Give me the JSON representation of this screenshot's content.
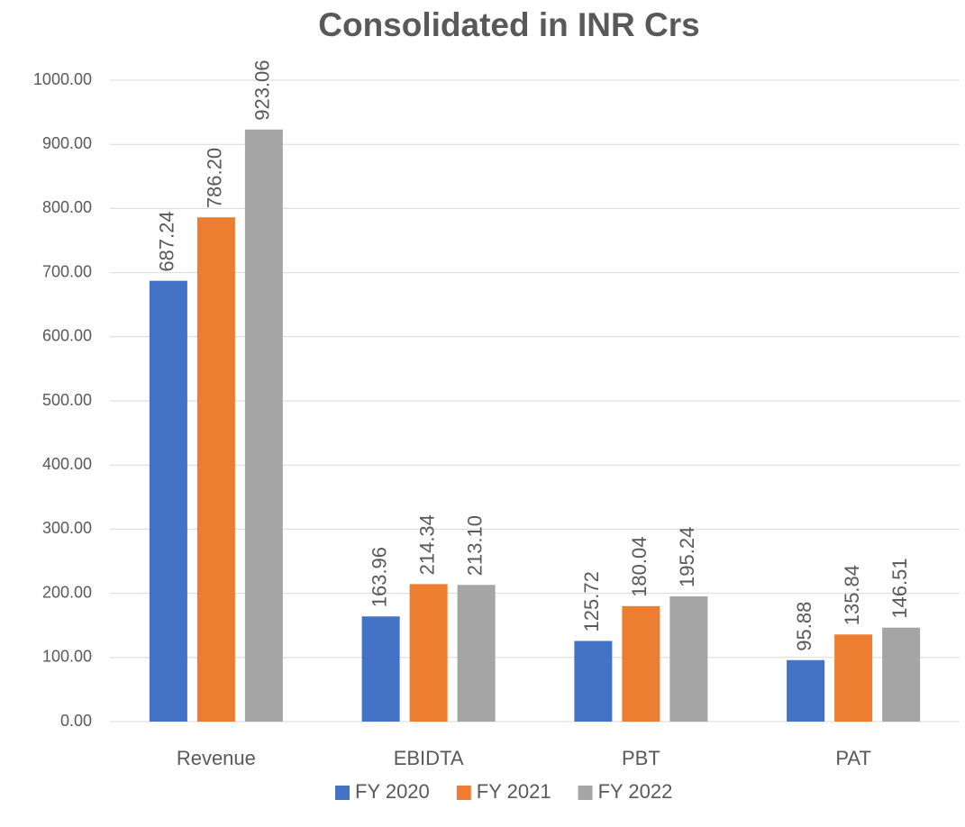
{
  "chart_data": {
    "type": "bar",
    "title": "Consolidated in INR Crs",
    "categories": [
      "Revenue",
      "EBIDTA",
      "PBT",
      "PAT"
    ],
    "series": [
      {
        "name": "FY 2020",
        "color": "#4472c4",
        "values": [
          687.24,
          163.96,
          125.72,
          95.88
        ],
        "value_labels": [
          "687.24",
          "163.96",
          "125.72",
          "95.88"
        ]
      },
      {
        "name": "FY 2021",
        "color": "#ed7d31",
        "values": [
          786.2,
          214.34,
          180.04,
          135.84
        ],
        "value_labels": [
          "786.20",
          "214.34",
          "180.04",
          "135.84"
        ]
      },
      {
        "name": "FY 2022",
        "color": "#a5a5a5",
        "values": [
          923.06,
          213.1,
          195.24,
          146.51
        ],
        "value_labels": [
          "923.06",
          "213.10",
          "195.24",
          "146.51"
        ]
      }
    ],
    "ylim": [
      0,
      1000
    ],
    "yticks": [
      {
        "value": 0,
        "label": "0.00"
      },
      {
        "value": 100,
        "label": "100.00"
      },
      {
        "value": 200,
        "label": "200.00"
      },
      {
        "value": 300,
        "label": "300.00"
      },
      {
        "value": 400,
        "label": "400.00"
      },
      {
        "value": 500,
        "label": "500.00"
      },
      {
        "value": 600,
        "label": "600.00"
      },
      {
        "value": 700,
        "label": "700.00"
      },
      {
        "value": 800,
        "label": "800.00"
      },
      {
        "value": 900,
        "label": "900.00"
      },
      {
        "value": 1000,
        "label": "1000.00"
      }
    ],
    "grid": true,
    "legend": "bottom"
  }
}
